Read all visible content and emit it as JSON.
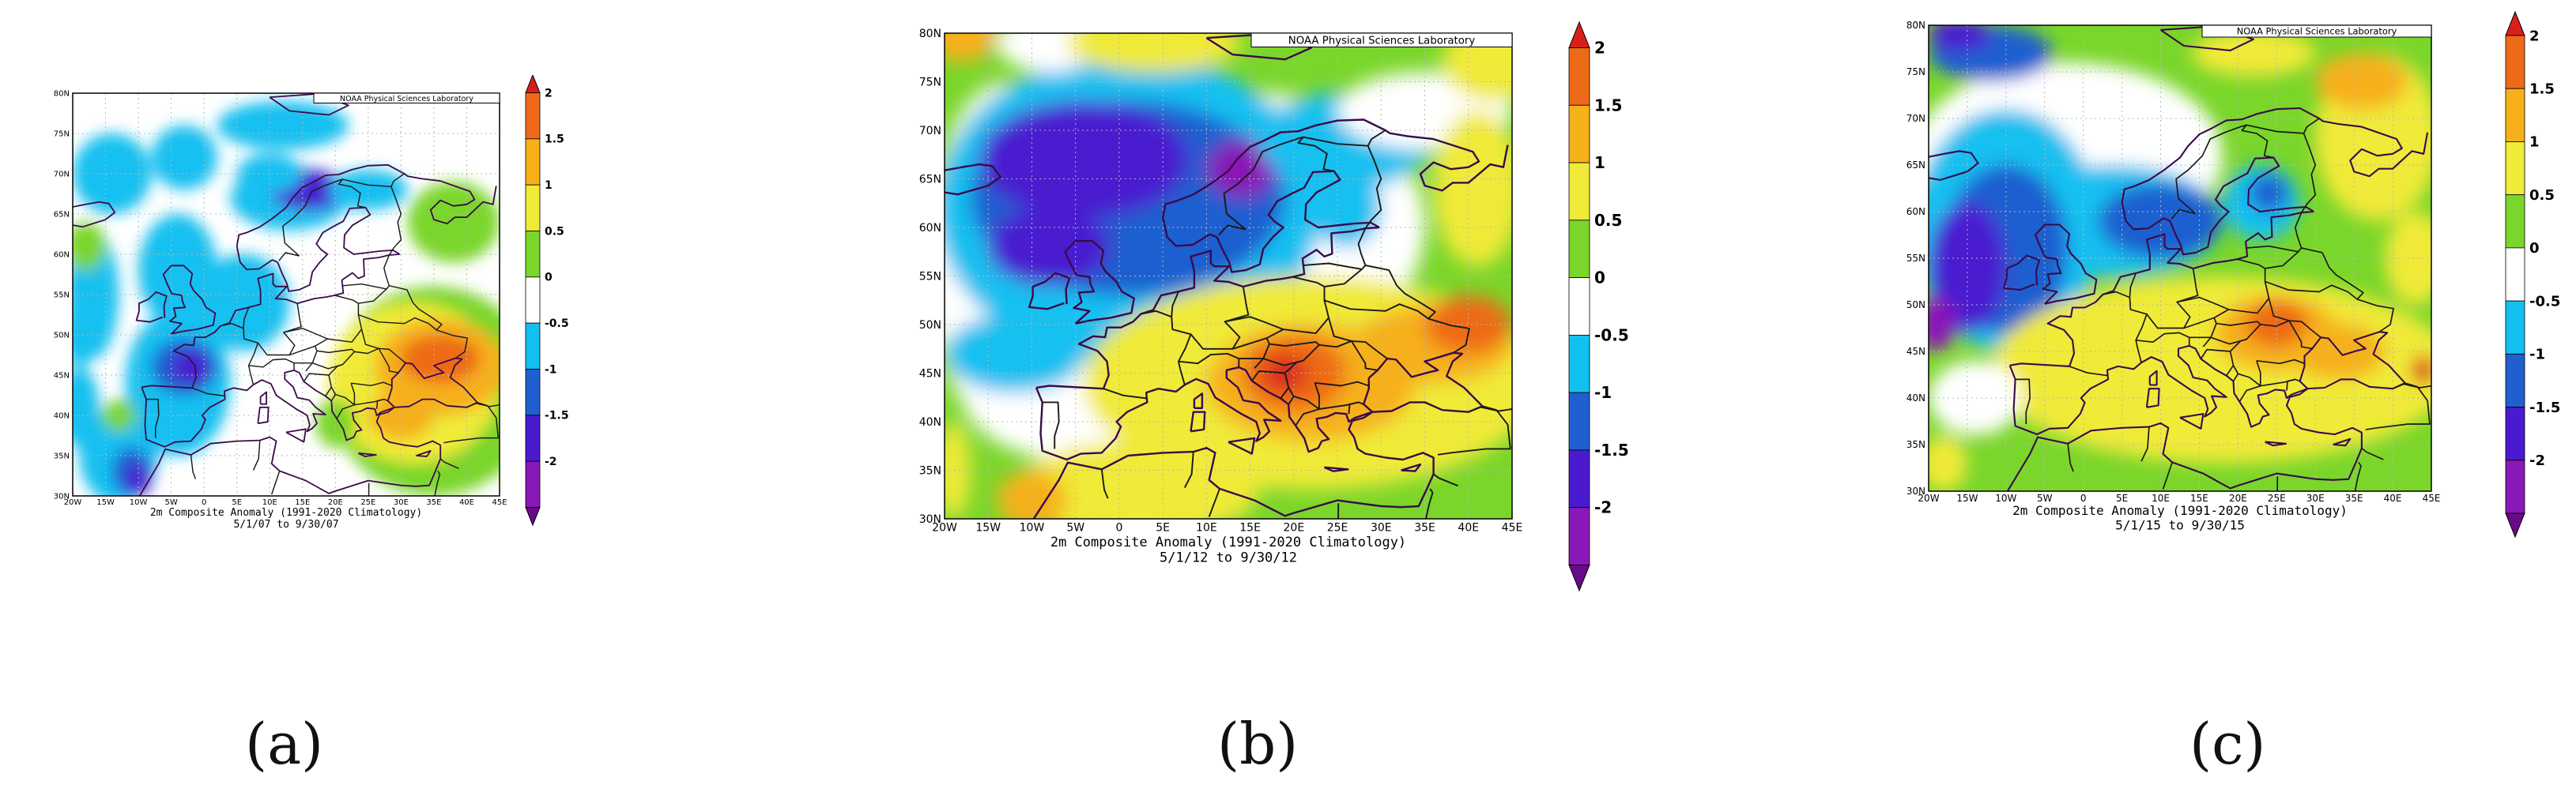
{
  "colors": {
    "m2": "#6a0a8a",
    "m15": "#8a18b8",
    "m1": "#4a1ad0",
    "m05": "#1f5fd0",
    "m0": "#12c0f0",
    "z": "#ffffff",
    "p05": "#7ad62a",
    "p1": "#f0ea38",
    "p15": "#f6b01a",
    "p2": "#ee6a18",
    "p25": "#d8201a",
    "coast": "#3a0a4a",
    "grid": "#b8b8b8"
  },
  "colorbar": {
    "labels": [
      "2",
      "1.5",
      "1",
      "0.5",
      "0",
      "-0.5",
      "-1",
      "-1.5",
      "-2"
    ],
    "levels": [
      "p25",
      "p2",
      "p15",
      "p1",
      "p05",
      "z",
      "m0",
      "m05",
      "m1",
      "m15",
      "m2"
    ]
  },
  "axes": {
    "lon_labels": [
      "20W",
      "15W",
      "10W",
      "5W",
      "0",
      "5E",
      "10E",
      "15E",
      "20E",
      "25E",
      "30E",
      "35E",
      "40E",
      "45E"
    ],
    "lat_labels": [
      "30N",
      "35N",
      "40N",
      "45N",
      "50N",
      "55N",
      "60N",
      "65N",
      "70N",
      "75N",
      "80N"
    ]
  },
  "panels": [
    {
      "id": "a",
      "credit": "NOAA Physical Sciences Laboratory",
      "caption1": "2m   Composite Anomaly (1991-2020 Climatology)",
      "caption2": "5/1/07  to 9/30/07",
      "label": "(a)",
      "background": "z",
      "blobs": [
        {
          "lon": -14,
          "lat": 70,
          "rx": 6,
          "ry": 5,
          "c": "m0"
        },
        {
          "lon": -3,
          "lat": 72,
          "rx": 5,
          "ry": 4,
          "c": "m0"
        },
        {
          "lon": 12,
          "lat": 76,
          "rx": 10,
          "ry": 3,
          "c": "m0"
        },
        {
          "lon": 13,
          "lat": 67,
          "rx": 9,
          "ry": 4,
          "c": "m0"
        },
        {
          "lon": 16,
          "lat": 68,
          "rx": 6,
          "ry": 2.5,
          "c": "m1"
        },
        {
          "lon": 25,
          "lat": 68,
          "rx": 6,
          "ry": 2.5,
          "c": "m0"
        },
        {
          "lon": -17,
          "lat": 55,
          "rx": 4,
          "ry": 8,
          "c": "m0"
        },
        {
          "lon": -4,
          "lat": 58,
          "rx": 6,
          "ry": 7,
          "c": "m0"
        },
        {
          "lon": 6,
          "lat": 54,
          "rx": 7,
          "ry": 6,
          "c": "m0"
        },
        {
          "lon": -4,
          "lat": 44,
          "rx": 8,
          "ry": 9,
          "c": "m0"
        },
        {
          "lon": -3,
          "lat": 46,
          "rx": 5,
          "ry": 3.5,
          "c": "m05"
        },
        {
          "lon": -2,
          "lat": 46,
          "rx": 3,
          "ry": 2,
          "c": "m1"
        },
        {
          "lon": -13,
          "lat": 35,
          "rx": 6,
          "ry": 6,
          "c": "m0"
        },
        {
          "lon": -11,
          "lat": 33,
          "rx": 3,
          "ry": 3,
          "c": "m05"
        },
        {
          "lon": -10,
          "lat": 32,
          "rx": 2,
          "ry": 2,
          "c": "m1"
        },
        {
          "lon": -19,
          "lat": 41,
          "rx": 3,
          "ry": 5,
          "c": "m0"
        },
        {
          "lon": -19,
          "lat": 50,
          "rx": 2.5,
          "ry": 4,
          "c": "m0"
        },
        {
          "lon": -18,
          "lat": 61,
          "rx": 3,
          "ry": 3,
          "c": "p05"
        },
        {
          "lon": 10,
          "lat": 70,
          "rx": 5,
          "ry": 2.5,
          "c": "m0"
        },
        {
          "lon": 38,
          "lat": 64,
          "rx": 7,
          "ry": 5,
          "c": "p05"
        },
        {
          "lon": 35,
          "lat": 43,
          "rx": 16,
          "ry": 13,
          "c": "p05"
        },
        {
          "lon": 32,
          "lat": 44,
          "rx": 13,
          "ry": 10,
          "c": "p1"
        },
        {
          "lon": 36,
          "lat": 46,
          "rx": 10,
          "ry": 6,
          "c": "p15"
        },
        {
          "lon": 36,
          "lat": 47,
          "rx": 6,
          "ry": 3,
          "c": "p2"
        },
        {
          "lon": 30,
          "lat": 40,
          "rx": 5,
          "ry": 3,
          "c": "p15"
        },
        {
          "lon": 20,
          "lat": 39,
          "rx": 3,
          "ry": 3,
          "c": "p05"
        },
        {
          "lon": -13,
          "lat": 40,
          "rx": 2.5,
          "ry": 2,
          "c": "p05"
        }
      ]
    },
    {
      "id": "b",
      "credit": "NOAA Physical Sciences Laboratory",
      "caption1": "2m   Composite Anomaly (1991-2020 Climatology)",
      "caption2": "5/1/12  to 9/30/12",
      "label": "(b)",
      "background": "p05",
      "blobs": [
        {
          "lon": 15,
          "lat": 60,
          "rx": 20,
          "ry": 14,
          "c": "z"
        },
        {
          "lon": -13,
          "lat": 57,
          "rx": 9,
          "ry": 18,
          "c": "z"
        },
        {
          "lon": -5,
          "lat": 43,
          "rx": 13,
          "ry": 7,
          "c": "z"
        },
        {
          "lon": 1,
          "lat": 62,
          "rx": 22,
          "ry": 16,
          "c": "m0"
        },
        {
          "lon": 1,
          "lat": 63,
          "rx": 18,
          "ry": 10,
          "c": "m05"
        },
        {
          "lon": -4,
          "lat": 67,
          "rx": 12,
          "ry": 6,
          "c": "m1"
        },
        {
          "lon": -12,
          "lat": 47,
          "rx": 8,
          "ry": 4,
          "c": "m0"
        },
        {
          "lon": -8,
          "lat": 58,
          "rx": 7,
          "ry": 4,
          "c": "m1"
        },
        {
          "lon": 14,
          "lat": 66,
          "rx": 4,
          "ry": 3,
          "c": "m15"
        },
        {
          "lon": 26,
          "lat": 69,
          "rx": 10,
          "ry": 5,
          "c": "m0"
        },
        {
          "lon": 26,
          "lat": 62,
          "rx": 4,
          "ry": 4,
          "c": "m0"
        },
        {
          "lon": 35,
          "lat": 72,
          "rx": 10,
          "ry": 4,
          "c": "z"
        },
        {
          "lon": 22,
          "lat": 44,
          "rx": 26,
          "ry": 11,
          "c": "p1"
        },
        {
          "lon": 22,
          "lat": 44,
          "rx": 12,
          "ry": 6,
          "c": "p15"
        },
        {
          "lon": 20,
          "lat": 45,
          "rx": 6,
          "ry": 4,
          "c": "p2"
        },
        {
          "lon": 19,
          "lat": 45,
          "rx": 2.5,
          "ry": 1.8,
          "c": "p25"
        },
        {
          "lon": 36,
          "lat": 48,
          "rx": 9,
          "ry": 4,
          "c": "p15"
        },
        {
          "lon": 40,
          "lat": 50,
          "rx": 5,
          "ry": 3,
          "c": "p2"
        },
        {
          "lon": 2,
          "lat": 33,
          "rx": 14,
          "ry": 5,
          "c": "p1"
        },
        {
          "lon": -10,
          "lat": 32,
          "rx": 4,
          "ry": 3,
          "c": "p15"
        },
        {
          "lon": -19,
          "lat": 35,
          "rx": 2,
          "ry": 5,
          "c": "p1"
        },
        {
          "lon": 41,
          "lat": 64,
          "rx": 5,
          "ry": 8,
          "c": "p1"
        },
        {
          "lon": 43,
          "lat": 77,
          "rx": 6,
          "ry": 4,
          "c": "p1"
        },
        {
          "lon": -18,
          "lat": 80,
          "rx": 4,
          "ry": 3,
          "c": "p15"
        },
        {
          "lon": -8,
          "lat": 79,
          "rx": 6,
          "ry": 3,
          "c": "z"
        },
        {
          "lon": 4,
          "lat": 79,
          "rx": 10,
          "ry": 3,
          "c": "p1"
        }
      ]
    },
    {
      "id": "c",
      "credit": "NOAA Physical Sciences Laboratory",
      "caption1": "2m   Composite Anomaly (1991-2020 Climatology)",
      "caption2": "5/1/15  to 9/30/15",
      "label": "(c)",
      "background": "p05",
      "blobs": [
        {
          "lon": -2,
          "lat": 66,
          "rx": 20,
          "ry": 10,
          "c": "z"
        },
        {
          "lon": -10,
          "lat": 58,
          "rx": 12,
          "ry": 13,
          "c": "m0"
        },
        {
          "lon": 4,
          "lat": 59,
          "rx": 14,
          "ry": 6,
          "c": "m0"
        },
        {
          "lon": 10,
          "lat": 59,
          "rx": 8,
          "ry": 4,
          "c": "m05"
        },
        {
          "lon": -10,
          "lat": 56,
          "rx": 8,
          "ry": 9,
          "c": "m05"
        },
        {
          "lon": -15,
          "lat": 54,
          "rx": 5,
          "ry": 7,
          "c": "m1"
        },
        {
          "lon": -19,
          "lat": 48,
          "rx": 2.5,
          "ry": 3,
          "c": "m15"
        },
        {
          "lon": 23,
          "lat": 61,
          "rx": 5,
          "ry": 4,
          "c": "m0"
        },
        {
          "lon": 24,
          "lat": 62,
          "rx": 2.5,
          "ry": 2,
          "c": "m05"
        },
        {
          "lon": -12,
          "lat": 77,
          "rx": 8,
          "ry": 3,
          "c": "m05"
        },
        {
          "lon": -16,
          "lat": 79,
          "rx": 4,
          "ry": 1.8,
          "c": "m1"
        },
        {
          "lon": 18,
          "lat": 43,
          "rx": 30,
          "ry": 10,
          "c": "p1"
        },
        {
          "lon": 25,
          "lat": 47,
          "rx": 8,
          "ry": 4,
          "c": "p15"
        },
        {
          "lon": 25,
          "lat": 48,
          "rx": 4,
          "ry": 2.5,
          "c": "p2"
        },
        {
          "lon": 33,
          "lat": 45,
          "rx": 6,
          "ry": 3,
          "c": "p15"
        },
        {
          "lon": 38,
          "lat": 68,
          "rx": 8,
          "ry": 9,
          "c": "p1"
        },
        {
          "lon": 36,
          "lat": 74,
          "rx": 6,
          "ry": 3,
          "c": "p15"
        },
        {
          "lon": 22,
          "lat": 77,
          "rx": 8,
          "ry": 2.5,
          "c": "p1"
        },
        {
          "lon": -14,
          "lat": 40,
          "rx": 6,
          "ry": 4,
          "c": "z"
        },
        {
          "lon": 43,
          "lat": 55,
          "rx": 4,
          "ry": 5,
          "c": "p1"
        },
        {
          "lon": -18,
          "lat": 33,
          "rx": 3,
          "ry": 3,
          "c": "p1"
        },
        {
          "lon": 44,
          "lat": 43,
          "rx": 1.5,
          "ry": 1.5,
          "c": "p25"
        }
      ]
    }
  ]
}
